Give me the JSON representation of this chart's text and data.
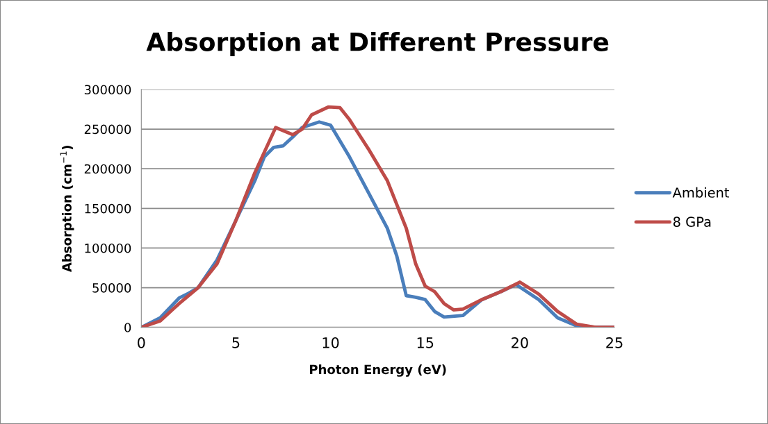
{
  "chart_data": {
    "type": "line",
    "title": "Absorption at Different Pressure",
    "xlabel": "Photon Energy (eV)",
    "ylabel": "Absorption (cm$^{−1}$)",
    "xlim": [
      0,
      25
    ],
    "xticks": [
      0,
      5,
      10,
      15,
      20,
      25
    ],
    "ylim": [
      0,
      300000
    ],
    "yticks": [
      0,
      50000,
      100000,
      150000,
      200000,
      250000,
      300000
    ],
    "grid": "y",
    "legend": "right",
    "marker": "none",
    "line_style": "solid",
    "series": [
      {
        "name": "Ambient",
        "color": "#4a7ebb",
        "x": [
          0,
          1,
          2,
          2.5,
          3,
          4,
          5,
          6,
          6.5,
          7,
          7.5,
          8,
          8.5,
          9.4,
          10,
          11,
          12,
          13,
          13.5,
          14,
          14.5,
          15,
          15.5,
          16,
          17,
          18,
          19,
          19.8,
          21,
          22,
          23,
          24,
          25
        ],
        "values": [
          0,
          12000,
          37000,
          43000,
          50000,
          85000,
          135000,
          185000,
          215000,
          227000,
          229000,
          240000,
          252000,
          259000,
          255000,
          215000,
          170000,
          125000,
          90000,
          40000,
          38000,
          35000,
          20000,
          13000,
          15000,
          35000,
          45000,
          54000,
          35000,
          12000,
          2000,
          0,
          0
        ]
      },
      {
        "name": "8 GPa",
        "color": "#be4b48",
        "x": [
          0,
          1,
          2,
          3,
          4,
          5,
          6,
          7.1,
          8,
          8.5,
          9,
          9.9,
          10.5,
          11,
          12,
          13,
          14,
          14.5,
          15,
          15.5,
          16,
          16.5,
          17,
          18,
          19,
          20,
          21,
          22,
          23,
          24,
          25
        ],
        "values": [
          0,
          8000,
          30000,
          50000,
          80000,
          135000,
          195000,
          252000,
          243000,
          250000,
          268000,
          278000,
          277000,
          262000,
          225000,
          185000,
          125000,
          80000,
          52000,
          45000,
          30000,
          22000,
          23000,
          35000,
          45000,
          57000,
          42000,
          20000,
          4000,
          0,
          0
        ]
      }
    ]
  }
}
